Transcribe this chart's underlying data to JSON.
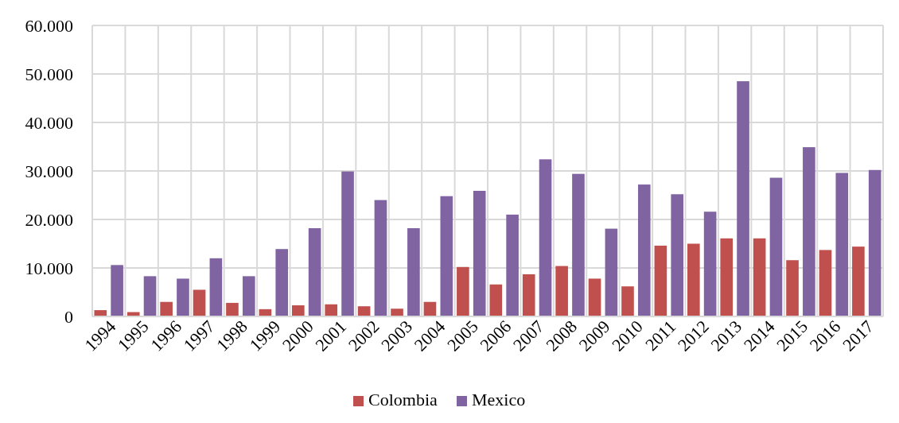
{
  "chart_data": {
    "type": "bar",
    "categories": [
      "1994",
      "1995",
      "1996",
      "1997",
      "1998",
      "1999",
      "2000",
      "2001",
      "2002",
      "2003",
      "2004",
      "2005",
      "2006",
      "2007",
      "2008",
      "2009",
      "2010",
      "2011",
      "2012",
      "2013",
      "2014",
      "2015",
      "2016",
      "2017"
    ],
    "series": [
      {
        "name": "Colombia",
        "color": "#c0504d",
        "values": [
          1300,
          900,
          3000,
          5500,
          2800,
          1500,
          2300,
          2500,
          2100,
          1600,
          3000,
          10200,
          6600,
          8700,
          10400,
          7800,
          6200,
          14600,
          15000,
          16100,
          16100,
          11600,
          13700,
          14400
        ]
      },
      {
        "name": "Mexico",
        "color": "#8064a2",
        "values": [
          10600,
          8300,
          7800,
          12000,
          8300,
          13900,
          18200,
          29900,
          24000,
          18200,
          24800,
          25900,
          21000,
          32400,
          29400,
          18100,
          27200,
          25200,
          21600,
          48500,
          28600,
          34900,
          29600,
          30200
        ]
      }
    ],
    "ylim": [
      0,
      60000
    ],
    "yticks": [
      {
        "value": 0,
        "label": "0"
      },
      {
        "value": 10000,
        "label": "10.000"
      },
      {
        "value": 20000,
        "label": "20.000"
      },
      {
        "value": 30000,
        "label": "30.000"
      },
      {
        "value": 40000,
        "label": "40.000"
      },
      {
        "value": 50000,
        "label": "50.000"
      },
      {
        "value": 60000,
        "label": "60.000"
      }
    ],
    "grid": true,
    "legend": "bottom"
  }
}
